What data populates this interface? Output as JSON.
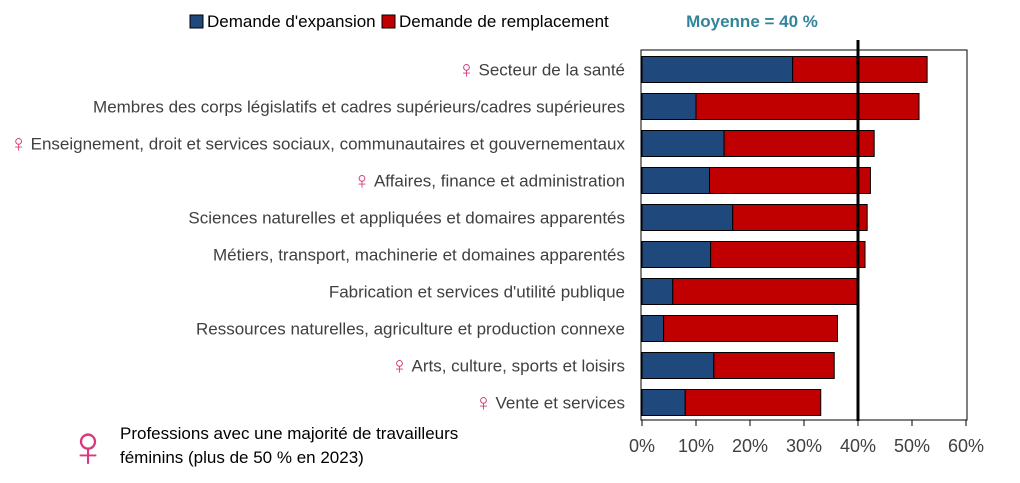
{
  "chart_data": {
    "type": "bar",
    "orientation": "horizontal",
    "stacked": true,
    "categories": [
      "Secteur de la santé",
      "Membres des corps législatifs et cadres supérieurs/cadres supérieures",
      "Enseignement, droit et services sociaux, communautaires et gouvernementaux",
      "Affaires, finance et administration",
      "Sciences naturelles et appliquées et domaires apparentés",
      "Métiers, transport, machinerie et domaines apparentés",
      "Fabrication et services d'utilité publique",
      "Ressources naturelles, agriculture et production connexe",
      "Arts, culture, sports et loisirs",
      "Vente et services"
    ],
    "female_majority": [
      true,
      false,
      true,
      true,
      false,
      false,
      false,
      false,
      true,
      true
    ],
    "series": [
      {
        "name": "Demande d'expansion",
        "color": "#1f497d",
        "values": [
          27.9,
          10.0,
          15.2,
          12.5,
          16.8,
          12.7,
          5.7,
          4.0,
          13.3,
          8.0
        ]
      },
      {
        "name": "Demande de remplacement",
        "color": "#c00000",
        "values": [
          24.9,
          41.3,
          27.8,
          29.8,
          24.9,
          28.6,
          34.3,
          32.2,
          22.3,
          25.1
        ]
      }
    ],
    "xlim": [
      0,
      60
    ],
    "xticks": [
      "0%",
      "10%",
      "20%",
      "30%",
      "40%",
      "50%",
      "60%"
    ],
    "reference_line": {
      "value": 40,
      "label": "Moyenne = 40 %",
      "label_color": "#31849b"
    },
    "legend_position": "top",
    "grid": false
  },
  "footnote": {
    "symbol": "♀",
    "symbol_color": "#d63a7a",
    "text_line1": "Professions avec une majorité de travailleurs",
    "text_line2": "féminins (plus de 50 % en 2023)"
  }
}
